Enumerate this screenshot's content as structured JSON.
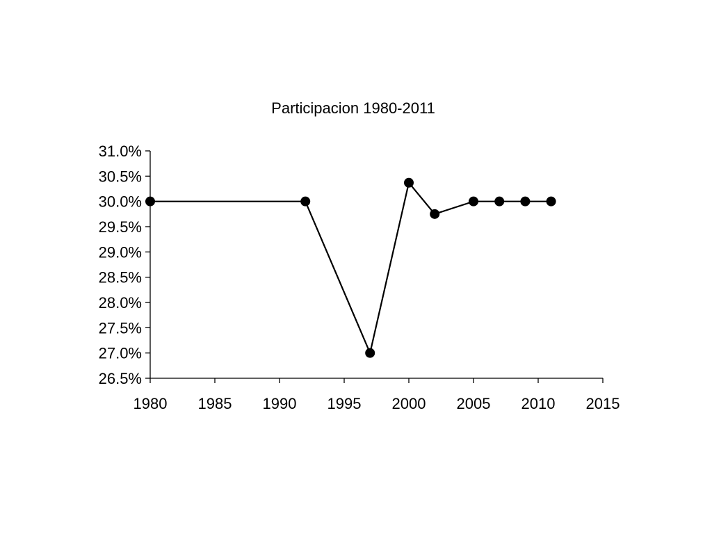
{
  "chart_data": {
    "type": "line",
    "title": "Participacion 1980-2011",
    "xlabel": "",
    "ylabel": "",
    "xlim": [
      1980,
      2015
    ],
    "ylim": [
      0.265,
      0.31
    ],
    "x_ticks": [
      1980,
      1985,
      1990,
      1995,
      2000,
      2005,
      2010,
      2015
    ],
    "y_ticks": [
      0.265,
      0.27,
      0.275,
      0.28,
      0.285,
      0.29,
      0.295,
      0.3,
      0.305,
      0.31
    ],
    "y_tick_labels": [
      "26.5%",
      "27.0%",
      "27.5%",
      "28.0%",
      "28.5%",
      "29.0%",
      "29.5%",
      "30.0%",
      "30.5%",
      "31.0%"
    ],
    "grid": false,
    "legend": "none",
    "series": [
      {
        "x": [
          1980,
          1992,
          1997,
          2000,
          2002,
          2005,
          2007,
          2009,
          2011
        ],
        "y": [
          0.3,
          0.3,
          0.27,
          0.3037,
          0.2975,
          0.3,
          0.3,
          0.3,
          0.3
        ],
        "color": "#000000",
        "marker": "circle"
      }
    ]
  }
}
